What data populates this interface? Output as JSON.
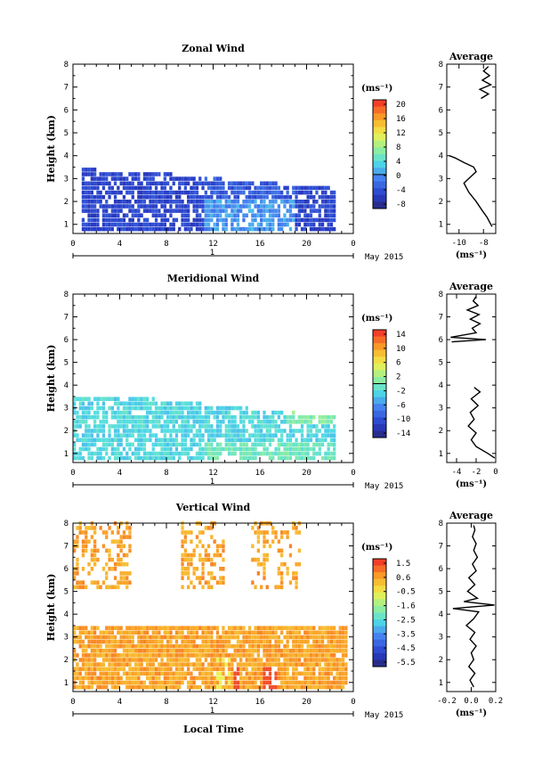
{
  "figure": {
    "date_label": "May 2015",
    "day_label": "1",
    "x_axis_title": "Local Time",
    "avg_title": "Average",
    "unit_label": "(ms⁻¹)"
  },
  "chart_data": [
    {
      "type": "heatmap",
      "title": "Zonal Wind",
      "ylabel": "Height (km)",
      "xlabel": "Local Time",
      "x_ticks": [
        "0",
        "4",
        "8",
        "12",
        "16",
        "20",
        "0"
      ],
      "xlim": [
        0,
        24
      ],
      "y_ticks": [
        "1",
        "2",
        "3",
        "4",
        "5",
        "6",
        "7",
        "8"
      ],
      "ylim": [
        0.6,
        8
      ],
      "colorbar": {
        "unit": "(ms⁻¹)",
        "ticks": [
          "20",
          "16",
          "12",
          "8",
          "4",
          "0",
          "-4",
          "-8"
        ],
        "range": [
          -10,
          22
        ],
        "zero_line": 0
      },
      "profile": {
        "title": "Average",
        "xlabel": "(ms⁻¹)",
        "x_ticks": [
          "-10",
          "-8"
        ],
        "xlim": [
          -11,
          -7
        ],
        "heights": [
          0.9,
          1.1,
          1.3,
          1.6,
          2.0,
          2.4,
          2.8,
          3.1,
          3.3,
          3.5,
          3.7,
          3.9,
          4.0,
          6.5,
          6.7,
          6.9,
          7.1,
          7.3,
          7.5,
          7.7,
          7.9
        ],
        "values": [
          -7.3,
          -7.5,
          -7.7,
          -8.1,
          -8.6,
          -9.2,
          -9.6,
          -9.0,
          -8.6,
          -8.8,
          -9.6,
          -10.3,
          -10.8,
          -8.2,
          -7.6,
          -8.3,
          -7.4,
          -8.1,
          -7.5,
          -8.0,
          -7.6
        ]
      }
    },
    {
      "type": "heatmap",
      "title": "Meridional Wind",
      "ylabel": "Height (km)",
      "xlabel": "Local Time",
      "x_ticks": [
        "0",
        "4",
        "8",
        "12",
        "16",
        "20",
        "0"
      ],
      "xlim": [
        0,
        24
      ],
      "y_ticks": [
        "1",
        "2",
        "3",
        "4",
        "5",
        "6",
        "7",
        "8"
      ],
      "ylim": [
        0.6,
        8
      ],
      "colorbar": {
        "unit": "(ms⁻¹)",
        "ticks": [
          "14",
          "10",
          "6",
          "2",
          "-2",
          "-6",
          "-10",
          "-14"
        ],
        "range": [
          -16,
          16
        ],
        "zero_line": 0
      },
      "profile": {
        "title": "Average",
        "xlabel": "(ms⁻¹)",
        "x_ticks": [
          "-4",
          "-2",
          "0"
        ],
        "xlim": [
          -5,
          0
        ],
        "heights": [
          0.8,
          1.0,
          1.3,
          1.6,
          1.9,
          2.2,
          2.5,
          2.8,
          3.1,
          3.4,
          3.7,
          3.9,
          5.9,
          6.0,
          6.1,
          6.3,
          6.5,
          6.7,
          6.9,
          7.1,
          7.3,
          7.5,
          7.7,
          7.9
        ],
        "values": [
          -0.1,
          -0.8,
          -2.0,
          -2.5,
          -2.0,
          -2.8,
          -2.2,
          -2.6,
          -1.8,
          -2.5,
          -1.6,
          -2.2,
          -4.5,
          -1.0,
          -4.6,
          -2.0,
          -2.4,
          -1.6,
          -2.6,
          -1.7,
          -2.9,
          -1.8,
          -2.3,
          -2.0
        ]
      }
    },
    {
      "type": "heatmap",
      "title": "Vertical Wind",
      "ylabel": "Height (km)",
      "xlabel": "Local Time",
      "x_ticks": [
        "0",
        "4",
        "8",
        "12",
        "16",
        "20",
        "0"
      ],
      "xlim": [
        0,
        24
      ],
      "y_ticks": [
        "1",
        "2",
        "3",
        "4",
        "5",
        "6",
        "7",
        "8"
      ],
      "ylim": [
        0.6,
        8
      ],
      "colorbar": {
        "unit": "(ms⁻¹)",
        "ticks": [
          "1.5",
          "0.6",
          "-0.5",
          "-1.6",
          "-2.5",
          "-3.5",
          "-4.5",
          "-5.5"
        ],
        "range": [
          -6,
          2
        ]
      },
      "profile": {
        "title": "Average",
        "xlabel": "(ms⁻¹)",
        "x_ticks": [
          "-0.2",
          "0.0",
          "0.2"
        ],
        "xlim": [
          -0.2,
          0.2
        ],
        "heights": [
          0.8,
          1.1,
          1.4,
          1.7,
          2.0,
          2.3,
          2.6,
          2.9,
          3.2,
          3.5,
          3.8,
          4.1,
          4.25,
          4.4,
          4.55,
          4.7,
          5.0,
          5.3,
          5.6,
          5.9,
          6.2,
          6.5,
          6.8,
          7.1,
          7.4,
          7.7,
          7.9
        ],
        "values": [
          0.02,
          -0.01,
          0.03,
          -0.02,
          0.02,
          0.0,
          0.04,
          -0.01,
          0.03,
          -0.04,
          0.02,
          0.06,
          -0.15,
          0.19,
          -0.06,
          0.05,
          -0.03,
          0.03,
          -0.02,
          0.04,
          0.01,
          0.05,
          0.02,
          0.04,
          0.01,
          0.03,
          0.02
        ]
      }
    }
  ]
}
